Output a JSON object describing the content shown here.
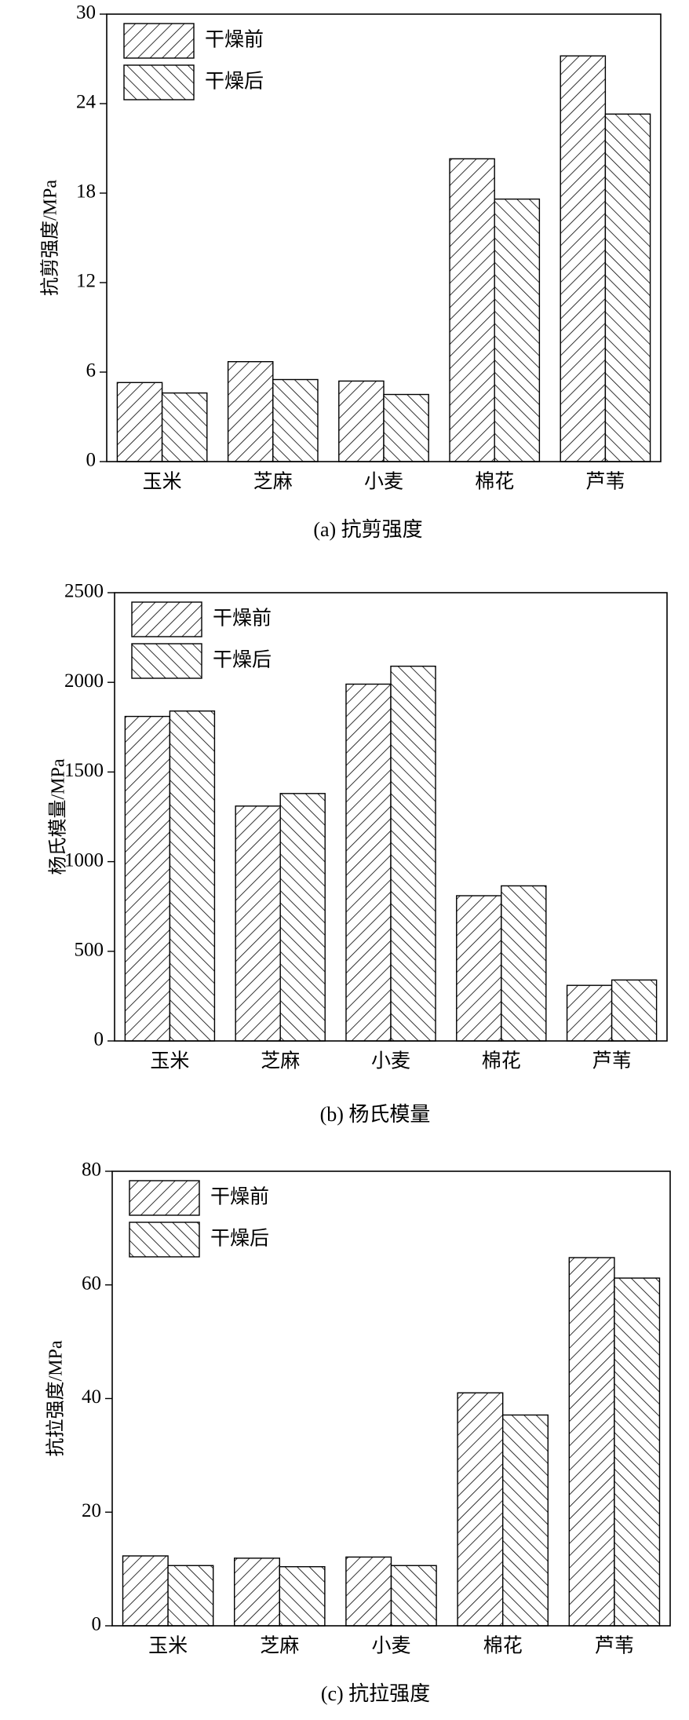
{
  "chart_data": [
    {
      "type": "bar",
      "title": "(a) 抗剪强度",
      "ylabel": "抗剪强度/MPa",
      "categories": [
        "玉米",
        "芝麻",
        "小麦",
        "棉花",
        "芦苇"
      ],
      "series": [
        {
          "name": "干燥前",
          "color": "#000000",
          "hatch": "/",
          "values": [
            5.3,
            6.7,
            5.4,
            20.3,
            27.2
          ]
        },
        {
          "name": "干燥后",
          "color": "#000000",
          "hatch": "\\",
          "values": [
            4.6,
            5.5,
            4.5,
            17.6,
            23.3
          ]
        }
      ],
      "ylim": [
        0,
        30
      ],
      "yticks": [
        0,
        6,
        12,
        18,
        24,
        30
      ],
      "legend": "upper left"
    },
    {
      "type": "bar",
      "title": "(b) 杨氏模量",
      "ylabel": "杨氏模量/MPa",
      "categories": [
        "玉米",
        "芝麻",
        "小麦",
        "棉花",
        "芦苇"
      ],
      "series": [
        {
          "name": "干燥前",
          "color": "#000000",
          "hatch": "/",
          "values": [
            1810,
            1310,
            1990,
            810,
            310
          ]
        },
        {
          "name": "干燥后",
          "color": "#000000",
          "hatch": "\\",
          "values": [
            1840,
            1380,
            2090,
            865,
            340
          ]
        }
      ],
      "ylim": [
        0,
        2500
      ],
      "yticks": [
        0,
        500,
        1000,
        1500,
        2000,
        2500
      ],
      "legend": "upper left"
    },
    {
      "type": "bar",
      "title": "(c) 抗拉强度",
      "ylabel": "抗拉强度/MPa",
      "categories": [
        "玉米",
        "芝麻",
        "小麦",
        "棉花",
        "芦苇"
      ],
      "series": [
        {
          "name": "干燥前",
          "color": "#000000",
          "hatch": "/",
          "values": [
            12.3,
            11.9,
            12.1,
            41.0,
            64.8
          ]
        },
        {
          "name": "干燥后",
          "color": "#000000",
          "hatch": "\\",
          "values": [
            10.6,
            10.4,
            10.6,
            37.1,
            61.2
          ]
        }
      ],
      "ylim": [
        0,
        80
      ],
      "yticks": [
        0,
        20,
        40,
        60,
        80
      ],
      "legend": "upper left"
    }
  ]
}
